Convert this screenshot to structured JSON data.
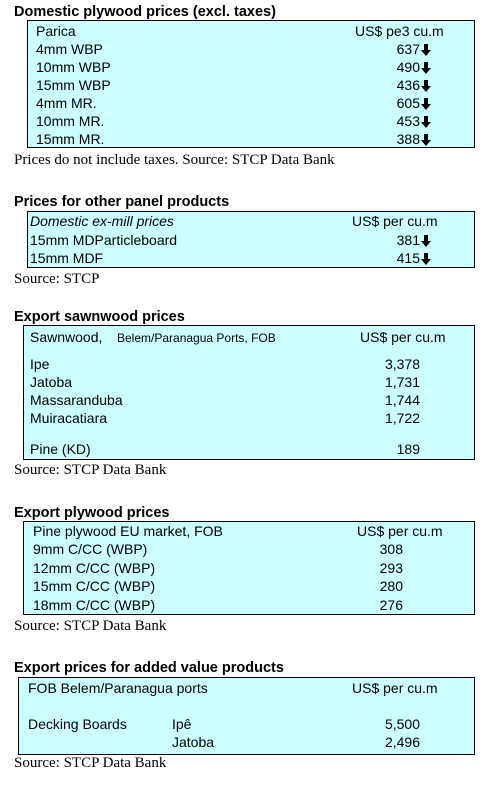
{
  "sections": [
    {
      "title": "Domestic plywood prices (excl. taxes)",
      "header": [
        "Parica",
        "US$ pe3 cu.m"
      ],
      "rows": [
        [
          "4mm WBP",
          "637"
        ],
        [
          "10mm WBP",
          "490"
        ],
        [
          "15mm WBP",
          "436"
        ],
        [
          "4mm MR.",
          "605"
        ],
        [
          "10mm MR.",
          "453"
        ],
        [
          "15mm MR.",
          "388"
        ]
      ],
      "note": "Prices do not include taxes. Source: STCP Data Bank"
    },
    {
      "title": "Prices for other panel products",
      "header": [
        "Domestic ex-mill prices",
        "US$ per cu.m"
      ],
      "rows": [
        [
          "15mm MDParticleboard",
          "381"
        ],
        [
          "15mm MDF",
          "415"
        ]
      ],
      "note": "Source: STCP"
    },
    {
      "title": "Export sawnwood prices",
      "header": [
        "Sawnwood,",
        "Belem/Paranagua Ports, FOB",
        "US$ per cu.m"
      ],
      "rows": [
        [
          "Ipe",
          "3,378"
        ],
        [
          "Jatoba",
          "1,731"
        ],
        [
          "Massaranduba",
          "1,744"
        ],
        [
          "Muiracatiara",
          "1,722"
        ],
        [
          "Pine (KD)",
          "189"
        ]
      ],
      "note": "Source: STCP Data Bank"
    },
    {
      "title": "Export plywood prices",
      "header": [
        "Pine plywood EU market, FOB",
        "US$ per cu.m"
      ],
      "rows": [
        [
          "9mm C/CC (WBP)",
          "308"
        ],
        [
          "12mm C/CC (WBP)",
          "293"
        ],
        [
          "15mm C/CC (WBP)",
          "280"
        ],
        [
          "18mm C/CC (WBP)",
          "276"
        ]
      ],
      "note": "Source: STCP Data Bank"
    },
    {
      "title": "Export prices for added value products",
      "header": [
        "FOB Belem/Paranagua ports",
        "US$ per cu.m"
      ],
      "rows": [
        [
          "Decking Boards",
          "Ipê",
          "5,500"
        ],
        [
          "Jatoba",
          "2,496"
        ]
      ],
      "note": "Source: STCP Data Bank"
    }
  ]
}
